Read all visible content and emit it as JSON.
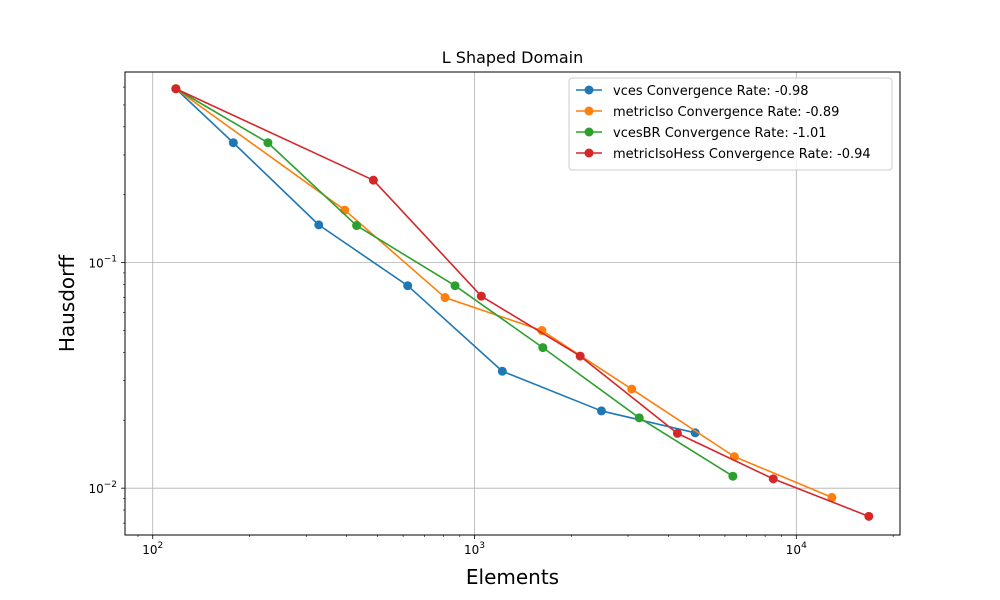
{
  "chart_data": {
    "type": "line",
    "title": "L Shaped Domain",
    "xlabel": "Elements",
    "ylabel": "Hausdorff",
    "xscale": "log",
    "yscale": "log",
    "xlim": [
      82,
      21000
    ],
    "ylim": [
      0.0062,
      0.7
    ],
    "grid": true,
    "legend_position": "top-right",
    "x_ticks": [
      {
        "value": 100,
        "base": "10",
        "exp": "2"
      },
      {
        "value": 1000,
        "base": "10",
        "exp": "3"
      },
      {
        "value": 10000,
        "base": "10",
        "exp": "4"
      }
    ],
    "y_ticks": [
      {
        "value": 0.1,
        "base": "10",
        "exp": "−1"
      },
      {
        "value": 0.01,
        "base": "10",
        "exp": "−2"
      }
    ],
    "series": [
      {
        "name": "vces Convergence Rate: -0.98",
        "color": "#1f77b4",
        "points": [
          [
            118,
            0.59
          ],
          [
            178,
            0.34
          ],
          [
            328,
            0.147
          ],
          [
            620,
            0.079
          ],
          [
            1220,
            0.033
          ],
          [
            2480,
            0.022
          ],
          [
            4850,
            0.0176
          ]
        ]
      },
      {
        "name": "metricIso Convergence Rate: -0.89",
        "color": "#ff7f0e",
        "points": [
          [
            118,
            0.59
          ],
          [
            395,
            0.171
          ],
          [
            810,
            0.07
          ],
          [
            1620,
            0.05
          ],
          [
            3080,
            0.0275
          ],
          [
            6420,
            0.0138
          ],
          [
            12900,
            0.0091
          ]
        ]
      },
      {
        "name": "vcesBR Convergence Rate: -1.01",
        "color": "#2ca02c",
        "points": [
          [
            118,
            0.59
          ],
          [
            228,
            0.34
          ],
          [
            430,
            0.146
          ],
          [
            870,
            0.079
          ],
          [
            1630,
            0.042
          ],
          [
            3250,
            0.0205
          ],
          [
            6350,
            0.0113
          ]
        ]
      },
      {
        "name": "metricIsoHess Convergence Rate: -0.94",
        "color": "#d62728",
        "points": [
          [
            118,
            0.59
          ],
          [
            485,
            0.232
          ],
          [
            1050,
            0.071
          ],
          [
            2130,
            0.0385
          ],
          [
            4270,
            0.0175
          ],
          [
            8480,
            0.011
          ],
          [
            16800,
            0.0075
          ]
        ]
      }
    ]
  }
}
